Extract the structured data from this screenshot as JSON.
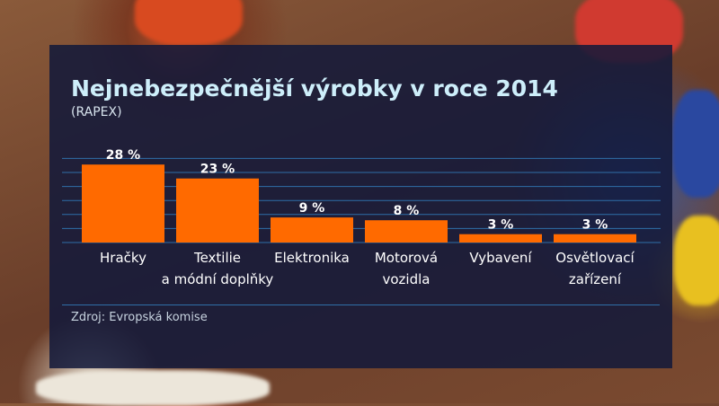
{
  "title": "Nejnebezpečnější výrobky v roce 2014",
  "subtitle": "(RAPEX)",
  "source": "Zdroj: Evropská komise",
  "colors": {
    "bar": "#ff6a00",
    "grid": "#2f6fa8",
    "title": "#cdeefa"
  },
  "chart_data": {
    "type": "bar",
    "title": "Nejnebezpečnější výrobky v roce 2014",
    "subtitle": "(RAPEX)",
    "categories": [
      [
        "Hračky"
      ],
      [
        "Textilie",
        "a módní doplňky"
      ],
      [
        "Elektronika"
      ],
      [
        "Motorová",
        "vozidla"
      ],
      [
        "Vybavení"
      ],
      [
        "Osvětlovací",
        "zařízení"
      ]
    ],
    "values": [
      28,
      23,
      9,
      8,
      3,
      3
    ],
    "data_labels": [
      "28 %",
      "23 %",
      "9 %",
      "8 %",
      "3 %",
      "3 %"
    ],
    "unit": "%",
    "ylim": [
      0,
      30
    ],
    "grid": true,
    "xlabel": "",
    "ylabel": ""
  }
}
